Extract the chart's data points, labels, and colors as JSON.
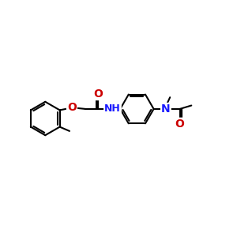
{
  "background_color": "#ffffff",
  "bond_color": "#000000",
  "bond_width": 1.5,
  "atom_colors": {
    "O": "#cc0000",
    "N": "#1a1aff",
    "C": "#000000"
  },
  "font_size_heteroatom": 10,
  "figsize": [
    3.0,
    3.0
  ],
  "dpi": 100,
  "xlim": [
    0,
    10
  ],
  "ylim": [
    1,
    8
  ]
}
